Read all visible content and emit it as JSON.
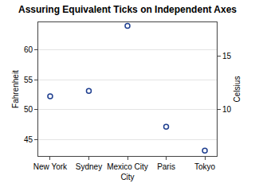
{
  "chart_data": {
    "type": "scatter",
    "title": "Assuring Equivalent Ticks on Independent Axes",
    "x_label": "City",
    "y_label": "Fahrenheit",
    "y2_label": "Celsius",
    "categories": [
      "New York",
      "Sydney",
      "Mexico City",
      "Paris",
      "Tokyo"
    ],
    "values": [
      52.2,
      53.1,
      64.0,
      47.1,
      43.1
    ],
    "color": "#1f3f8f",
    "marker": "circle-open",
    "ylim": [
      42.2,
      64.6
    ],
    "yticks": [
      45,
      50,
      55,
      60
    ],
    "y2lim": [
      5.67,
      18.11
    ],
    "y2ticks": [
      10,
      15
    ],
    "grid": true
  }
}
